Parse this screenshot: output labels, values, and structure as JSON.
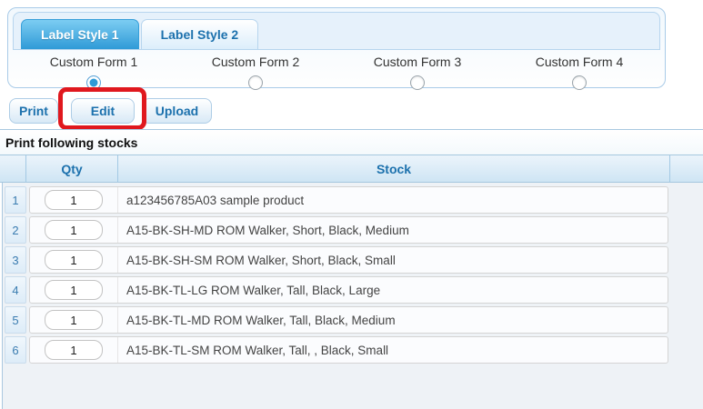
{
  "colors": {
    "accent": "#2f9ad7",
    "link-blue": "#1c71ad",
    "panel-border": "#a9cbe8",
    "annotation-red": "#e0181e"
  },
  "tabs": [
    {
      "label": "Label Style 1",
      "active": true
    },
    {
      "label": "Label Style 2",
      "active": false
    }
  ],
  "custom_forms": [
    {
      "label": "Custom Form 1",
      "selected": true
    },
    {
      "label": "Custom Form 2",
      "selected": false
    },
    {
      "label": "Custom Form 3",
      "selected": false
    },
    {
      "label": "Custom Form 4",
      "selected": false
    }
  ],
  "toolbar": {
    "print_label": "Print",
    "edit_label": "Edit",
    "upload_label": "Upload"
  },
  "annotation": {
    "shape": "red-rectangle",
    "target": "edit-button"
  },
  "stocks_section": {
    "title": "Print following stocks",
    "columns": {
      "qty": "Qty",
      "stock": "Stock"
    },
    "rows": [
      {
        "num": "1",
        "qty": "1",
        "stock": "a123456785A03 sample product"
      },
      {
        "num": "2",
        "qty": "1",
        "stock": "A15-BK-SH-MD ROM Walker, Short, Black, Medium"
      },
      {
        "num": "3",
        "qty": "1",
        "stock": "A15-BK-SH-SM ROM Walker, Short, Black, Small"
      },
      {
        "num": "4",
        "qty": "1",
        "stock": "A15-BK-TL-LG ROM Walker, Tall, Black, Large"
      },
      {
        "num": "5",
        "qty": "1",
        "stock": "A15-BK-TL-MD ROM Walker, Tall, Black, Medium"
      },
      {
        "num": "6",
        "qty": "1",
        "stock": "A15-BK-TL-SM ROM Walker, Tall, , Black, Small"
      }
    ]
  }
}
